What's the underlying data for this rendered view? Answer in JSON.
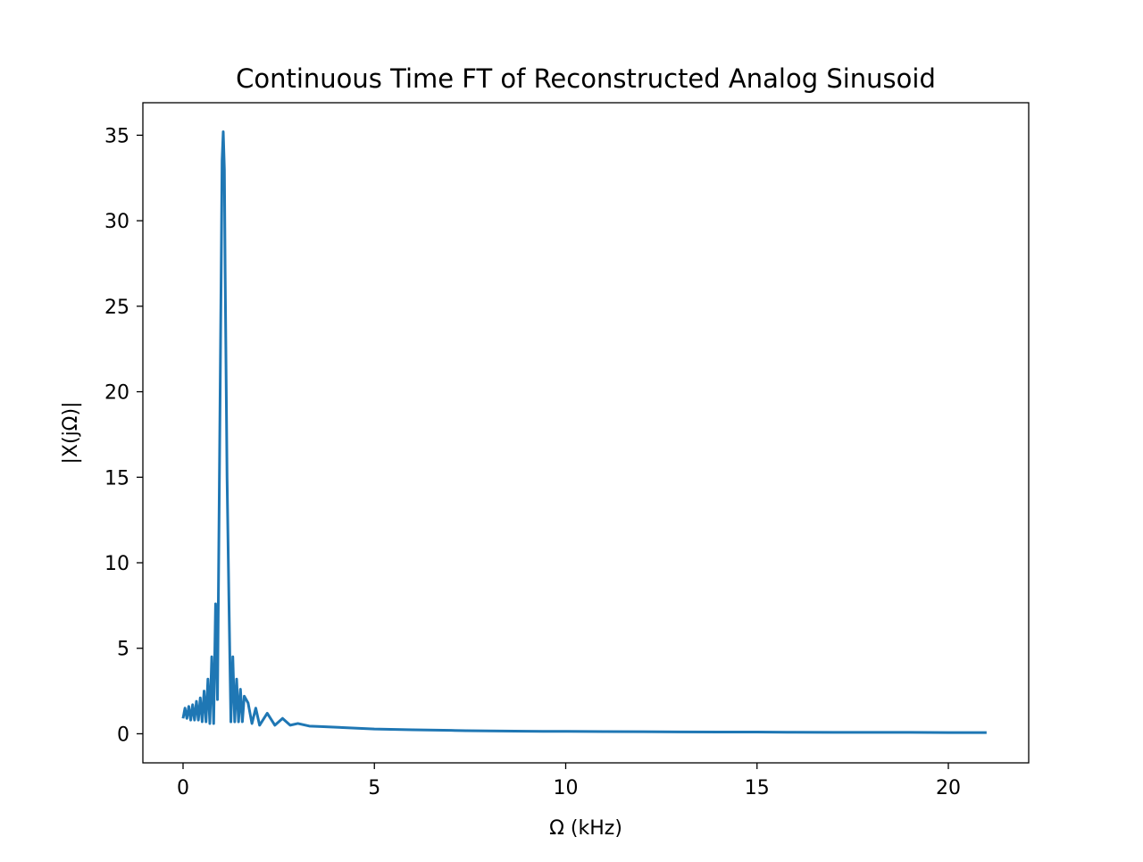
{
  "chart_data": {
    "type": "line",
    "title": "Continuous Time FT of Reconstructed Analog Sinusoid",
    "xlabel": "Ω (kHz)",
    "ylabel": "|X(jΩ)|",
    "xlim": [
      -1.05,
      22.1
    ],
    "ylim": [
      -1.7,
      36.9
    ],
    "xticks": [
      0,
      5,
      10,
      15,
      20
    ],
    "yticks": [
      0,
      5,
      10,
      15,
      20,
      25,
      30,
      35
    ],
    "grid": false,
    "legend": "none",
    "line_color": "#1f77b4",
    "series": [
      {
        "main_freq_khz": 1.05,
        "peak": 35.2,
        "x": [
          0,
          0.05,
          0.1,
          0.15,
          0.2,
          0.25,
          0.3,
          0.35,
          0.4,
          0.45,
          0.5,
          0.55,
          0.6,
          0.65,
          0.7,
          0.75,
          0.8,
          0.85,
          0.9,
          0.95,
          1.0,
          1.02,
          1.05,
          1.08,
          1.1,
          1.15,
          1.2,
          1.25,
          1.3,
          1.35,
          1.4,
          1.45,
          1.5,
          1.55,
          1.6,
          1.7,
          1.8,
          1.9,
          2.0,
          2.2,
          2.4,
          2.6,
          2.8,
          3.0,
          3.3,
          3.6,
          4.0,
          5.0,
          6.0,
          7.0,
          7.4,
          8.0,
          9.0,
          9.4,
          10.0,
          11.0,
          12.0,
          13.0,
          14.0,
          15.0,
          15.8,
          16.0,
          17.0,
          17.9,
          18.0,
          19.0,
          20.0,
          21.0
        ],
        "y": [
          0.9,
          1.5,
          0.9,
          1.6,
          0.8,
          1.7,
          0.8,
          1.9,
          0.8,
          2.1,
          0.7,
          2.5,
          0.7,
          3.2,
          0.6,
          4.5,
          0.6,
          7.6,
          2.0,
          15.0,
          28.0,
          33.5,
          35.2,
          33.0,
          27.0,
          15.0,
          7.7,
          0.7,
          4.5,
          0.7,
          3.2,
          0.7,
          2.6,
          0.7,
          2.2,
          1.8,
          0.6,
          1.5,
          0.5,
          1.2,
          0.5,
          0.9,
          0.5,
          0.6,
          0.45,
          0.42,
          0.38,
          0.28,
          0.23,
          0.2,
          0.18,
          0.17,
          0.15,
          0.14,
          0.14,
          0.13,
          0.12,
          0.11,
          0.1,
          0.1,
          0.09,
          0.09,
          0.08,
          0.08,
          0.08,
          0.08,
          0.07,
          0.07
        ]
      }
    ]
  }
}
